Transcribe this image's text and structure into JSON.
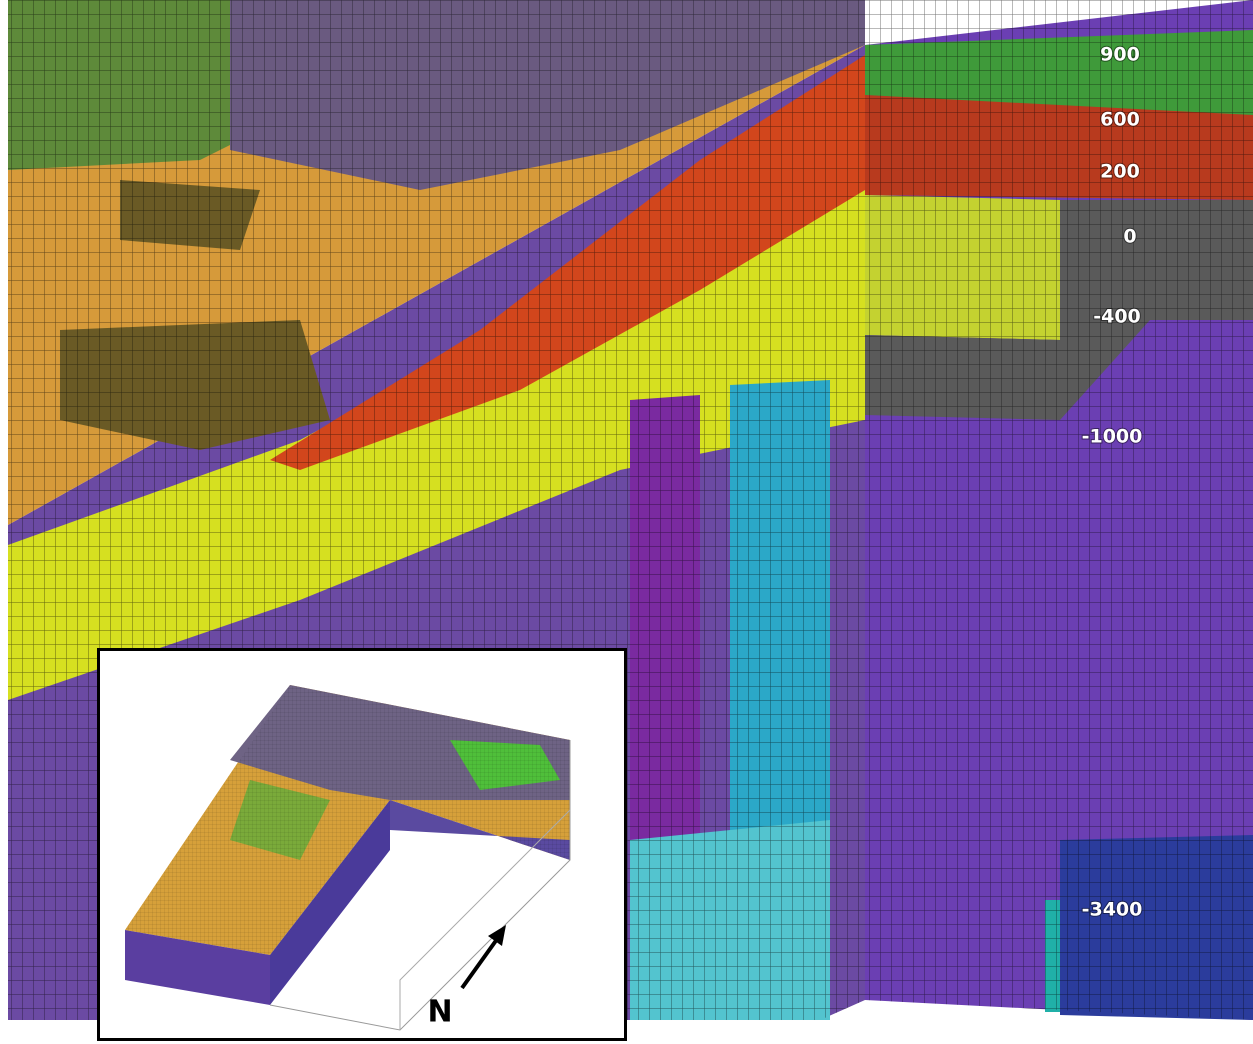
{
  "depth_labels": [
    900,
    600,
    200,
    0,
    -400,
    -1000,
    -3400
  ],
  "inset": {
    "north_label": "N"
  }
}
